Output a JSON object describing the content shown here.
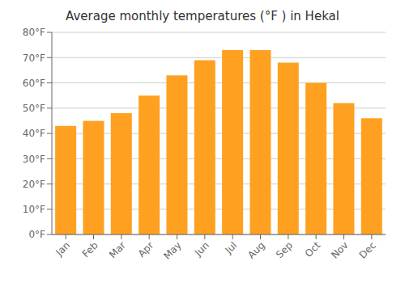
{
  "chart_data": {
    "type": "bar",
    "title": "Average monthly temperatures (°F ) in Hekal",
    "categories": [
      "Jan",
      "Feb",
      "Mar",
      "Apr",
      "May",
      "Jun",
      "Jul",
      "Aug",
      "Sep",
      "Oct",
      "Nov",
      "Dec"
    ],
    "values": [
      43,
      45,
      48,
      55,
      63,
      69,
      73,
      73,
      68,
      60,
      52,
      46
    ],
    "color": "#FFA020",
    "ylim": [
      0,
      80
    ],
    "yticks": [
      {
        "value": 0,
        "label": "0°F"
      },
      {
        "value": 10,
        "label": "10°F"
      },
      {
        "value": 20,
        "label": "20°F"
      },
      {
        "value": 30,
        "label": "30°F"
      },
      {
        "value": 40,
        "label": "40°F"
      },
      {
        "value": 50,
        "label": "50°F"
      },
      {
        "value": 60,
        "label": "60°F"
      },
      {
        "value": 70,
        "label": "70°F"
      },
      {
        "value": 80,
        "label": "80°F"
      }
    ],
    "grid": true
  }
}
